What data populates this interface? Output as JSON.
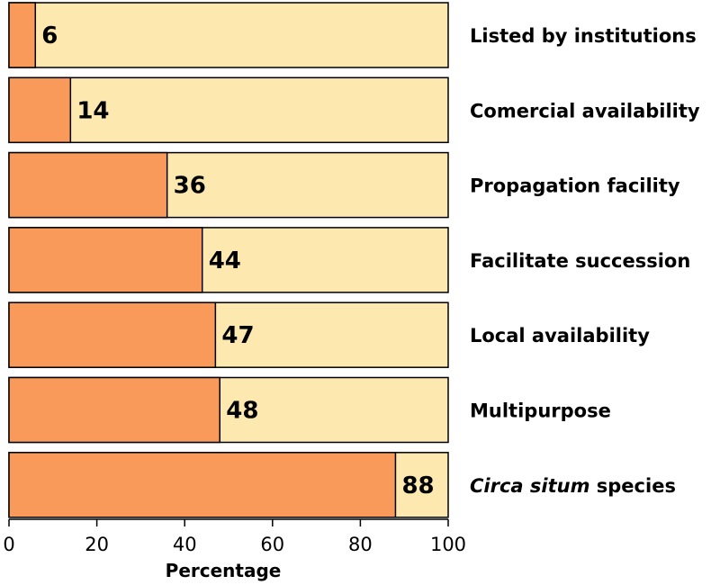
{
  "chart_data": {
    "type": "bar",
    "orientation": "horizontal",
    "stacked_to_total": true,
    "categories": [
      {
        "label": "Listed by institutions",
        "italic_prefix": ""
      },
      {
        "label": " species",
        "italic_prefix": "Circa situm"
      },
      {
        "label": "Comercial availability",
        "italic_prefix": ""
      },
      {
        "label": "Propagation facility",
        "italic_prefix": ""
      },
      {
        "label": "Facilitate succession",
        "italic_prefix": ""
      },
      {
        "label": "Local availability",
        "italic_prefix": ""
      },
      {
        "label": "Multipurpose",
        "italic_prefix": ""
      }
    ],
    "category_order_top_to_bottom": [
      0,
      2,
      3,
      4,
      5,
      6,
      1
    ],
    "values": [
      6,
      88,
      14,
      36,
      44,
      47,
      48
    ],
    "total": 100,
    "xlabel": "Percentage",
    "xlim": [
      0,
      100
    ],
    "xticks": [
      "0",
      "20",
      "40",
      "60",
      "80",
      "100"
    ],
    "colors": {
      "value_fill": "#fa9a5a",
      "remainder_fill": "#fde8b0",
      "stroke": "#000000"
    },
    "grid": false
  }
}
